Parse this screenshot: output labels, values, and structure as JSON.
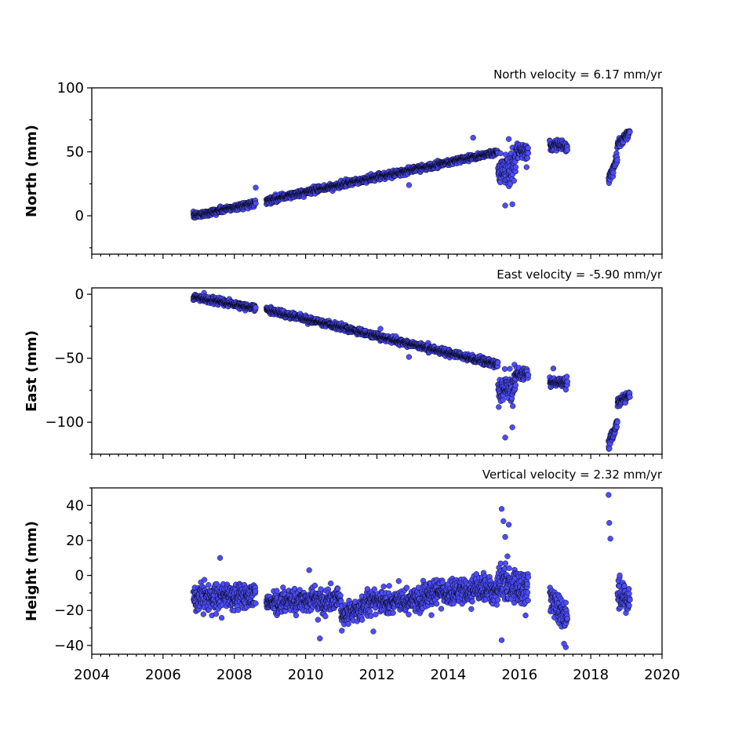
{
  "chart_data": [
    {
      "type": "scatter",
      "title": "North velocity = 6.17 mm/yr",
      "ylabel": "North (mm)",
      "xlabel": "",
      "xlim": [
        2004,
        2020
      ],
      "ylim": [
        -30,
        100
      ],
      "y_ticks": [
        0,
        50,
        100
      ],
      "y_tick_labels": [
        "0",
        "50",
        "100"
      ],
      "x_ticks": [
        2004,
        2006,
        2008,
        2010,
        2012,
        2014,
        2016,
        2018,
        2020
      ],
      "x_tick_labels": [
        "",
        "",
        "",
        "",
        "",
        "",
        "",
        "",
        ""
      ],
      "marker_color": "#4d4dff",
      "segments": [
        {
          "x_start": 2006.85,
          "x_end": 2008.6,
          "y_start": 0,
          "y_end": 10,
          "spread": 2.2
        },
        {
          "x_start": 2008.9,
          "x_end": 2015.4,
          "y_start": 12,
          "y_end": 50,
          "spread": 2.2
        },
        {
          "x_start": 2015.4,
          "x_end": 2015.9,
          "y_start": 35,
          "y_end": 40,
          "spread": 12
        },
        {
          "x_start": 2015.9,
          "x_end": 2016.25,
          "y_start": 50,
          "y_end": 50,
          "spread": 5
        },
        {
          "x_start": 2016.85,
          "x_end": 2017.35,
          "y_start": 55,
          "y_end": 55,
          "spread": 3.5
        },
        {
          "x_start": 2018.5,
          "x_end": 2018.75,
          "y_start": 28,
          "y_end": 45,
          "spread": 4
        },
        {
          "x_start": 2018.75,
          "x_end": 2019.1,
          "y_start": 55,
          "y_end": 66,
          "spread": 3
        }
      ],
      "outliers": [
        {
          "x": 2008.6,
          "y": 22
        },
        {
          "x": 2012.9,
          "y": 24
        },
        {
          "x": 2014.7,
          "y": 61
        },
        {
          "x": 2015.6,
          "y": 8
        },
        {
          "x": 2015.8,
          "y": 9
        },
        {
          "x": 2015.7,
          "y": 60
        },
        {
          "x": 2016.2,
          "y": 38
        }
      ]
    },
    {
      "type": "scatter",
      "title": "East velocity = -5.90 mm/yr",
      "ylabel": "East (mm)",
      "xlabel": "",
      "xlim": [
        2004,
        2020
      ],
      "ylim": [
        -125,
        5
      ],
      "y_ticks": [
        0,
        -50,
        -100
      ],
      "y_tick_labels": [
        "0",
        "−50",
        "−100"
      ],
      "x_ticks": [
        2004,
        2006,
        2008,
        2010,
        2012,
        2014,
        2016,
        2018,
        2020
      ],
      "x_tick_labels": [
        "",
        "",
        "",
        "",
        "",
        "",
        "",
        "",
        ""
      ],
      "marker_color": "#4d4dff",
      "segments": [
        {
          "x_start": 2006.85,
          "x_end": 2008.6,
          "y_start": -2,
          "y_end": -11,
          "spread": 2.2
        },
        {
          "x_start": 2008.9,
          "x_end": 2015.4,
          "y_start": -12,
          "y_end": -55,
          "spread": 2.2
        },
        {
          "x_start": 2015.4,
          "x_end": 2015.9,
          "y_start": -75,
          "y_end": -70,
          "spread": 12
        },
        {
          "x_start": 2015.9,
          "x_end": 2016.25,
          "y_start": -62,
          "y_end": -62,
          "spread": 4
        },
        {
          "x_start": 2016.85,
          "x_end": 2017.35,
          "y_start": -69,
          "y_end": -69,
          "spread": 3.5
        },
        {
          "x_start": 2018.5,
          "x_end": 2018.75,
          "y_start": -118,
          "y_end": -100,
          "spread": 5
        },
        {
          "x_start": 2018.75,
          "x_end": 2019.1,
          "y_start": -85,
          "y_end": -78,
          "spread": 3
        }
      ],
      "outliers": [
        {
          "x": 2015.6,
          "y": -112
        },
        {
          "x": 2015.8,
          "y": -104
        },
        {
          "x": 2016.95,
          "y": -58
        },
        {
          "x": 2012.1,
          "y": -27
        },
        {
          "x": 2012.9,
          "y": -49
        }
      ]
    },
    {
      "type": "scatter",
      "title": "Vertical velocity = 2.32 mm/yr",
      "ylabel": "Height (mm)",
      "xlabel": "",
      "xlim": [
        2004,
        2020
      ],
      "ylim": [
        -45,
        50
      ],
      "y_ticks": [
        -40,
        -20,
        0,
        20,
        40
      ],
      "y_tick_labels": [
        "−40",
        "−20",
        "0",
        "20",
        "40"
      ],
      "x_ticks": [
        2004,
        2006,
        2008,
        2010,
        2012,
        2014,
        2016,
        2018,
        2020
      ],
      "x_tick_labels": [
        "2004",
        "2006",
        "2008",
        "2010",
        "2012",
        "2014",
        "2016",
        "2018",
        "2020"
      ],
      "marker_color": "#4d4dff",
      "segments": [
        {
          "x_start": 2006.85,
          "x_end": 2008.6,
          "y_start": -12,
          "y_end": -12,
          "spread": 6.5
        },
        {
          "x_start": 2008.9,
          "x_end": 2011.0,
          "y_start": -15,
          "y_end": -14,
          "spread": 6
        },
        {
          "x_start": 2011.0,
          "x_end": 2011.7,
          "y_start": -22,
          "y_end": -18,
          "spread": 5
        },
        {
          "x_start": 2011.7,
          "x_end": 2013.3,
          "y_start": -15,
          "y_end": -14,
          "spread": 6
        },
        {
          "x_start": 2013.3,
          "x_end": 2015.4,
          "y_start": -10,
          "y_end": -8,
          "spread": 6.5
        },
        {
          "x_start": 2015.4,
          "x_end": 2016.25,
          "y_start": -4,
          "y_end": -8,
          "spread": 9
        },
        {
          "x_start": 2016.85,
          "x_end": 2017.35,
          "y_start": -12,
          "y_end": -25,
          "spread": 8
        },
        {
          "x_start": 2018.75,
          "x_end": 2019.1,
          "y_start": -10,
          "y_end": -14,
          "spread": 7
        }
      ],
      "outliers": [
        {
          "x": 2015.5,
          "y": 38
        },
        {
          "x": 2015.55,
          "y": 31
        },
        {
          "x": 2015.7,
          "y": 29
        },
        {
          "x": 2015.6,
          "y": 22
        },
        {
          "x": 2018.5,
          "y": 46
        },
        {
          "x": 2018.52,
          "y": 30
        },
        {
          "x": 2018.55,
          "y": 21
        },
        {
          "x": 2017.3,
          "y": -41
        },
        {
          "x": 2017.25,
          "y": -39
        },
        {
          "x": 2010.4,
          "y": -36
        },
        {
          "x": 2011.9,
          "y": -32
        },
        {
          "x": 2015.5,
          "y": -37
        },
        {
          "x": 2007.6,
          "y": 10
        },
        {
          "x": 2010.1,
          "y": 3
        }
      ]
    }
  ]
}
